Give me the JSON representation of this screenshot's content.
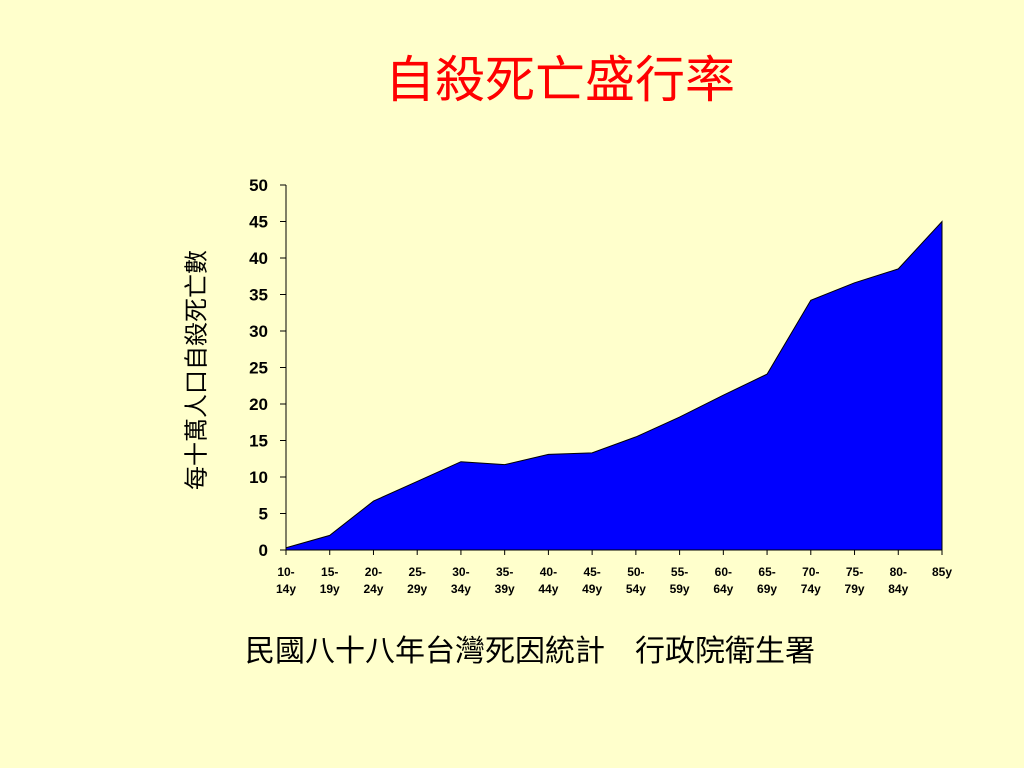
{
  "slide": {
    "title": "自殺死亡盛行率",
    "footer": "民國八十八年台灣死因統計　行政院衛生署"
  },
  "colors": {
    "area": "#0000ff",
    "title": "#ff0000",
    "background": "#ffffcc"
  },
  "chart_data": {
    "type": "area",
    "ylabel": "每十萬人口自殺死亡數",
    "ylim": [
      0,
      50
    ],
    "yticks": [
      0,
      5,
      10,
      15,
      20,
      25,
      30,
      35,
      40,
      45,
      50
    ],
    "categories": [
      [
        "10-",
        "14y"
      ],
      [
        "15-",
        "19y"
      ],
      [
        "20-",
        "24y"
      ],
      [
        "25-",
        "29y"
      ],
      [
        "30-",
        "34y"
      ],
      [
        "35-",
        "39y"
      ],
      [
        "40-",
        "44y"
      ],
      [
        "45-",
        "49y"
      ],
      [
        "50-",
        "54y"
      ],
      [
        "55-",
        "59y"
      ],
      [
        "60-",
        "64y"
      ],
      [
        "65-",
        "69y"
      ],
      [
        "70-",
        "74y"
      ],
      [
        "75-",
        "79y"
      ],
      [
        "80-",
        "84y"
      ],
      [
        "85y",
        ""
      ]
    ],
    "values": [
      0.3,
      2.0,
      6.7,
      9.4,
      12.1,
      11.7,
      13.1,
      13.3,
      15.5,
      18.2,
      21.2,
      24.1,
      34.2,
      36.6,
      38.5,
      45.0
    ]
  }
}
